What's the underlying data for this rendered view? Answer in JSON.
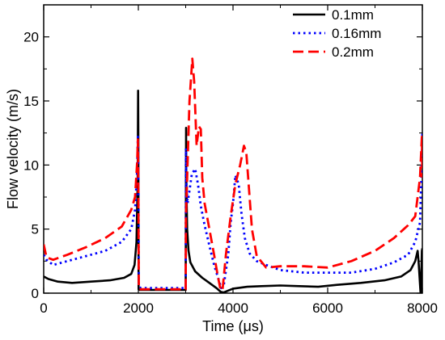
{
  "chart_data": {
    "type": "line",
    "title": "",
    "xlabel": "Time (μs)",
    "ylabel": "Flow velocity (m/s)",
    "xlim": [
      0,
      8000
    ],
    "ylim": [
      0,
      22.5
    ],
    "xticks": [
      0,
      2000,
      4000,
      6000,
      8000
    ],
    "xtick_labels": [
      "0",
      "2000",
      "4000",
      "6000",
      "8000"
    ],
    "yticks": [
      0,
      5,
      10,
      15,
      20
    ],
    "ytick_labels": [
      "0",
      "5",
      "10",
      "15",
      "20"
    ],
    "grid": false,
    "legend_position": "top-right",
    "series": [
      {
        "name": "0.1mm",
        "color": "#000000",
        "style": "solid",
        "x": [
          0,
          100,
          300,
          600,
          1000,
          1400,
          1700,
          1850,
          1920,
          1960,
          1985,
          1995,
          2000,
          2005,
          2020,
          2060,
          3000,
          3008,
          3012,
          3030,
          3060,
          3100,
          3200,
          3350,
          3500,
          3650,
          3740,
          3800,
          3900,
          4000,
          4300,
          4600,
          5000,
          5400,
          5800,
          6200,
          6700,
          7200,
          7550,
          7750,
          7850,
          7900,
          7920,
          7960,
          7970,
          7990,
          8000
        ],
        "y": [
          1.3,
          1.1,
          0.9,
          0.8,
          0.9,
          1.0,
          1.2,
          1.5,
          2.2,
          4.0,
          8.5,
          15.8,
          12.0,
          0.3,
          0.25,
          0.25,
          0.25,
          12.9,
          9.0,
          5.0,
          3.3,
          2.4,
          1.7,
          1.2,
          0.8,
          0.4,
          0.1,
          0.05,
          0.2,
          0.35,
          0.5,
          0.55,
          0.6,
          0.55,
          0.5,
          0.65,
          0.8,
          1.0,
          1.3,
          1.8,
          2.5,
          3.3,
          2.5,
          0.1,
          0.05,
          3.3,
          3.5
        ]
      },
      {
        "name": "0.16mm",
        "color": "#0000ff",
        "style": "dotted",
        "x": [
          0,
          60,
          200,
          500,
          900,
          1300,
          1650,
          1850,
          1930,
          1975,
          1990,
          2000,
          2010,
          2050,
          3000,
          3005,
          3015,
          3040,
          3080,
          3130,
          3200,
          3260,
          3320,
          3400,
          3500,
          3600,
          3700,
          3750,
          3800,
          3900,
          3950,
          4000,
          4050,
          4120,
          4180,
          4250,
          4350,
          4500,
          4700,
          5000,
          5500,
          6000,
          6500,
          7000,
          7400,
          7700,
          7850,
          7950,
          7980,
          8000
        ],
        "y": [
          3.0,
          2.6,
          2.2,
          2.5,
          2.9,
          3.3,
          4.0,
          5.0,
          6.5,
          9.5,
          12.2,
          10.5,
          0.5,
          0.4,
          0.4,
          11.3,
          8.5,
          7.0,
          8.0,
          9.3,
          9.7,
          8.5,
          6.8,
          5.3,
          3.7,
          2.2,
          1.0,
          0.4,
          0.5,
          3.0,
          5.5,
          7.0,
          9.2,
          8.5,
          6.2,
          4.3,
          3.1,
          2.5,
          2.2,
          1.8,
          1.6,
          1.6,
          1.6,
          1.9,
          2.4,
          3.0,
          4.0,
          5.5,
          9.0,
          12.5
        ]
      },
      {
        "name": "0.2mm",
        "color": "#ff0000",
        "style": "dashed",
        "x": [
          0,
          60,
          200,
          500,
          900,
          1300,
          1650,
          1850,
          1930,
          1975,
          1990,
          2000,
          2010,
          2050,
          3000,
          3005,
          3030,
          3080,
          3140,
          3180,
          3230,
          3280,
          3320,
          3350,
          3400,
          3500,
          3600,
          3680,
          3740,
          3780,
          3850,
          3950,
          4050,
          4150,
          4230,
          4280,
          4340,
          4400,
          4500,
          4700,
          5000,
          5500,
          6000,
          6500,
          7000,
          7400,
          7700,
          7850,
          7950,
          7990,
          8000
        ],
        "y": [
          3.8,
          2.8,
          2.6,
          3.0,
          3.6,
          4.3,
          5.2,
          6.5,
          7.5,
          10.2,
          12.0,
          8.0,
          0.3,
          0.3,
          0.3,
          6.0,
          9.0,
          15.0,
          18.3,
          16.5,
          11.5,
          13.0,
          12.8,
          9.0,
          7.0,
          5.0,
          3.0,
          1.3,
          0.2,
          0.3,
          3.0,
          6.0,
          8.5,
          10.0,
          11.5,
          11.0,
          8.0,
          5.0,
          2.9,
          2.0,
          2.1,
          2.1,
          2.0,
          2.5,
          3.3,
          4.3,
          5.3,
          6.0,
          9.0,
          12.2,
          9.0
        ]
      }
    ]
  }
}
